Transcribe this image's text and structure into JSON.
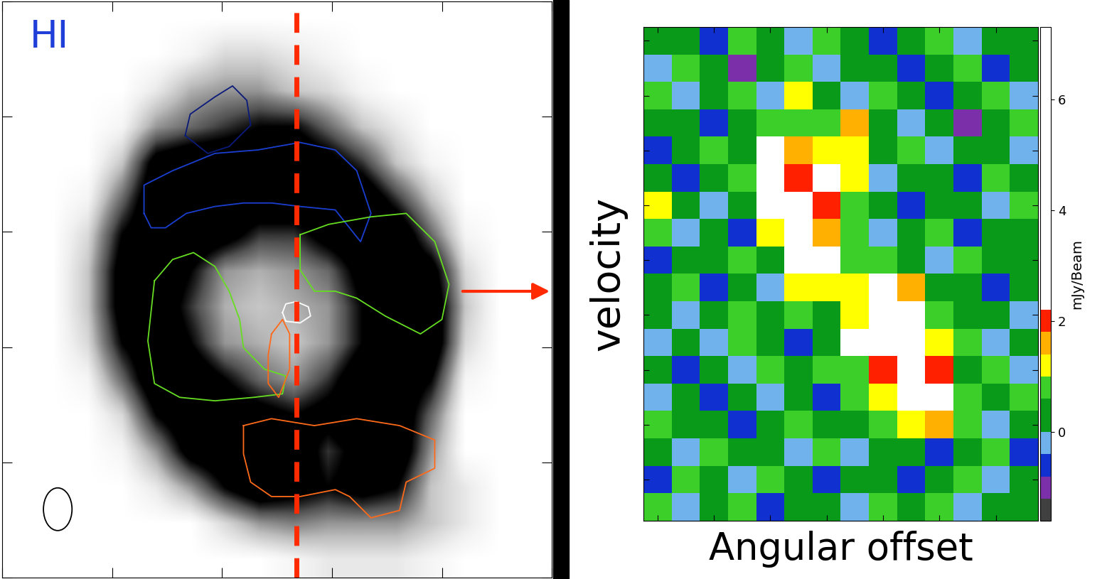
{
  "chart_data": [
    {
      "type": "image",
      "title": "HI",
      "tick_labels": false,
      "xlim": [
        0,
        100
      ],
      "ylim": [
        0,
        100
      ],
      "color_range": [
        0,
        6
      ],
      "cells": [
        [
          0,
          0,
          0,
          0,
          0,
          0,
          0,
          0,
          0,
          0,
          0,
          0,
          0,
          0,
          0,
          0
        ],
        [
          0,
          0,
          0,
          0,
          0,
          0.5,
          1.5,
          1.5,
          1,
          0.5,
          0,
          0,
          0,
          0,
          0,
          0
        ],
        [
          0,
          0,
          0,
          0,
          1,
          2.5,
          3,
          3,
          2,
          1.5,
          0.5,
          0,
          0,
          0,
          0,
          0
        ],
        [
          0,
          0,
          0,
          0.5,
          3,
          4,
          5,
          6,
          6,
          4,
          2,
          1,
          0,
          0,
          0,
          0
        ],
        [
          0,
          0,
          0,
          2,
          7,
          8,
          8,
          8,
          8,
          7,
          5,
          2,
          0.5,
          0,
          0,
          0
        ],
        [
          0,
          0,
          0.5,
          4,
          8,
          8,
          8,
          8,
          8,
          8,
          8,
          5,
          2,
          0,
          0,
          0
        ],
        [
          0,
          0,
          1.5,
          6,
          8,
          8,
          7,
          5,
          5,
          7,
          8,
          8,
          4,
          0.5,
          0,
          0
        ],
        [
          0,
          0,
          2,
          7,
          8,
          6,
          3,
          2.5,
          3,
          4,
          7,
          8,
          7,
          1.5,
          0,
          0
        ],
        [
          0,
          0,
          2,
          7,
          8,
          5,
          2.5,
          2,
          2.5,
          3,
          6,
          8,
          8,
          2,
          0,
          0
        ],
        [
          0,
          0,
          1.5,
          6,
          8,
          6,
          3,
          2.5,
          2,
          3,
          6,
          8,
          8,
          1.5,
          0,
          0
        ],
        [
          0,
          0,
          0.5,
          4,
          8,
          8,
          6,
          4,
          3,
          5,
          8,
          8,
          6,
          0.5,
          0,
          0
        ],
        [
          0,
          0,
          0,
          1.5,
          6,
          8,
          8,
          7,
          6,
          7,
          8,
          8,
          4,
          0,
          0,
          0
        ],
        [
          0,
          0,
          0,
          0.5,
          3,
          7,
          8,
          8,
          8,
          5,
          7,
          8,
          3,
          0,
          0,
          0
        ],
        [
          0,
          0,
          0,
          0,
          1,
          3,
          6,
          8,
          7,
          6,
          7,
          6,
          2,
          1,
          0,
          0
        ],
        [
          0,
          0,
          0,
          0,
          0,
          0,
          1.5,
          3,
          3.5,
          3,
          3,
          3,
          2,
          1,
          0,
          0
        ],
        [
          0,
          0,
          0,
          0,
          0,
          0,
          0,
          0,
          0.5,
          1,
          1,
          1,
          0.5,
          0,
          0,
          0
        ]
      ],
      "slice_x": 53.5,
      "slice_color": "#ff2a00",
      "contours": [
        {
          "color": "#0a1a7a",
          "x": [
            33.3,
            34.2,
            38.7,
            41.9,
            44.5,
            45.2,
            41.3,
            37.4,
            33.3
          ],
          "y": [
            76.7,
            80.4,
            83.4,
            85.3,
            82.8,
            78.5,
            74.8,
            73.6,
            76.7
          ]
        },
        {
          "color": "#1a3fd0",
          "x": [
            25.8,
            25.8,
            31.0,
            38.7,
            46.5,
            54.2,
            60.6,
            64.5,
            67.1,
            65.2,
            60.6,
            54.2,
            49.0,
            43.9,
            38.7,
            33.5,
            29.7,
            27.1,
            25.8
          ],
          "y": [
            63.2,
            68.1,
            70.6,
            73.6,
            74.2,
            75.5,
            74.2,
            70.6,
            63.2,
            58.3,
            63.8,
            64.4,
            65.0,
            65.0,
            64.4,
            63.2,
            60.7,
            60.7,
            63.2
          ]
        },
        {
          "color": "#66dd22",
          "x": [
            27.7,
            31.0,
            34.8,
            38.7,
            41.3,
            43.2,
            43.9,
            47.7,
            51.6,
            51.0,
            45.8,
            38.7,
            32.3,
            27.7,
            26.5,
            27.7
          ],
          "y": [
            51.5,
            55.2,
            56.4,
            54.0,
            49.7,
            44.8,
            39.9,
            36.2,
            35.0,
            31.9,
            31.3,
            30.7,
            31.3,
            33.7,
            41.1,
            51.5
          ]
        },
        {
          "color": "#66dd22",
          "x": [
            54.2,
            59.4,
            67.1,
            73.5,
            78.7,
            81.3,
            80.0,
            76.1,
            69.7,
            64.5,
            60.6,
            56.8,
            54.2,
            54.2
          ],
          "y": [
            59.5,
            61.3,
            62.6,
            63.2,
            58.3,
            50.9,
            44.8,
            42.3,
            45.4,
            48.5,
            49.7,
            49.7,
            53.4,
            59.5
          ]
        },
        {
          "color": "#ff6a1a",
          "x": [
            43.9,
            49.0,
            56.8,
            64.5,
            72.3,
            78.7,
            78.7,
            73.5,
            72.3,
            67.1,
            63.2,
            60.6,
            54.2,
            49.0,
            45.2,
            43.9,
            43.9
          ],
          "y": [
            26.4,
            27.6,
            26.4,
            27.6,
            26.4,
            23.9,
            19.0,
            16.6,
            11.7,
            10.4,
            14.1,
            15.3,
            14.1,
            14.1,
            16.6,
            21.5,
            26.4
          ]
        },
        {
          "color": "#ff6a1a",
          "x": [
            49.0,
            51.0,
            52.3,
            52.3,
            50.3,
            48.4,
            48.4,
            49.0
          ],
          "y": [
            42.3,
            44.8,
            42.3,
            36.2,
            31.3,
            33.7,
            38.7,
            42.3
          ]
        },
        {
          "color": "#ffffff",
          "x": [
            51.0,
            51.6,
            53.5,
            55.7,
            56.1,
            54.2,
            51.6,
            51.0
          ],
          "y": [
            46.0,
            47.5,
            47.9,
            47.0,
            45.4,
            44.2,
            44.5,
            46.0
          ]
        }
      ]
    },
    {
      "type": "heatmap",
      "xlabel": "Angular offset",
      "ylabel": "velocity",
      "tick_labels": false,
      "cells": [
        [
          0.5,
          0.2,
          -0.6,
          0.8,
          0.3,
          -0.2,
          0.6,
          0.1,
          -0.8,
          0.4,
          0.7,
          -0.3,
          0.2,
          0.5
        ],
        [
          -0.3,
          0.7,
          0.4,
          -0.9,
          0.2,
          0.8,
          -0.1,
          0.5,
          0.3,
          -0.5,
          0.1,
          0.6,
          -0.7,
          0.3
        ],
        [
          0.8,
          -0.4,
          0.3,
          0.6,
          -0.2,
          1.2,
          0.4,
          -0.3,
          0.7,
          0.2,
          -0.6,
          0.4,
          0.9,
          -0.2
        ],
        [
          0.2,
          0.5,
          -0.8,
          0.3,
          0.9,
          0.7,
          0.6,
          1.4,
          0.5,
          -0.2,
          0.3,
          -0.9,
          0.1,
          0.6
        ],
        [
          -0.5,
          0.3,
          0.6,
          0.2,
          5.5,
          1.4,
          1.0,
          1.3,
          0.2,
          0.6,
          -0.4,
          0.5,
          0.3,
          -0.1
        ],
        [
          0.4,
          -0.7,
          0.1,
          0.8,
          7.0,
          2.0,
          4.0,
          1.1,
          -0.3,
          0.4,
          0.2,
          -0.5,
          0.7,
          0.3
        ],
        [
          1.2,
          0.3,
          -0.4,
          0.5,
          4.0,
          6.5,
          1.8,
          0.6,
          0.3,
          -0.6,
          0.5,
          0.2,
          -0.3,
          0.8
        ],
        [
          0.6,
          -0.2,
          0.5,
          -0.6,
          1.0,
          6.5,
          1.7,
          0.8,
          -0.4,
          0.3,
          0.7,
          -0.8,
          0.4,
          0.1
        ],
        [
          -0.8,
          0.4,
          0.2,
          0.7,
          0.4,
          5.0,
          2.2,
          0.9,
          0.6,
          0.2,
          -0.3,
          0.6,
          0.2,
          0.5
        ],
        [
          0.3,
          0.6,
          -0.5,
          0.1,
          -0.3,
          1.3,
          1.0,
          1.2,
          5.0,
          1.5,
          0.4,
          0.1,
          -0.6,
          0.3
        ],
        [
          0.5,
          -0.3,
          0.4,
          0.8,
          0.2,
          0.6,
          0.4,
          1.1,
          6.5,
          4.0,
          0.8,
          0.3,
          0.5,
          -0.4
        ],
        [
          -0.2,
          0.1,
          -0.4,
          0.6,
          0.5,
          -0.5,
          0.3,
          2.2,
          5.0,
          7.0,
          1.2,
          0.6,
          -0.2,
          0.4
        ],
        [
          0.4,
          -0.6,
          0.3,
          -0.2,
          0.7,
          0.3,
          0.6,
          0.9,
          2.0,
          7.0,
          2.0,
          0.3,
          0.7,
          -0.3
        ],
        [
          -0.1,
          0.5,
          -0.7,
          0.4,
          -0.3,
          0.2,
          -0.5,
          0.6,
          1.1,
          5.0,
          4.0,
          0.8,
          0.2,
          0.6
        ],
        [
          0.6,
          0.2,
          0.5,
          -0.8,
          0.3,
          0.7,
          0.2,
          0.4,
          0.9,
          1.2,
          1.5,
          0.6,
          -0.4,
          0.2
        ],
        [
          0.2,
          -0.4,
          0.7,
          0.3,
          0.5,
          -0.3,
          0.6,
          -0.2,
          0.5,
          0.4,
          -0.6,
          0.3,
          0.8,
          -0.7
        ],
        [
          -0.6,
          0.7,
          0.1,
          -0.2,
          0.6,
          0.4,
          -0.8,
          0.5,
          0.2,
          -0.5,
          0.3,
          0.7,
          -0.2,
          0.4
        ],
        [
          0.7,
          -0.3,
          0.4,
          0.6,
          -0.5,
          0.2,
          0.5,
          -0.3,
          0.8,
          0.1,
          0.6,
          -0.4,
          0.5,
          0.2
        ]
      ],
      "colorbar": {
        "label": "mJy/Beam",
        "levels": [
          -1.6,
          -1.2,
          -0.8,
          -0.4,
          0,
          0.6,
          1.0,
          1.4,
          1.8,
          2.2,
          7.3
        ],
        "colors": [
          "#404040",
          "#7b2fa8",
          "#1030d0",
          "#6fb2ec",
          "#0a9a1a",
          "#3ccf2a",
          "#ffff00",
          "#ffb000",
          "#ff2000",
          "#ffffff"
        ],
        "ticks": [
          0,
          2,
          4,
          6
        ]
      }
    }
  ]
}
